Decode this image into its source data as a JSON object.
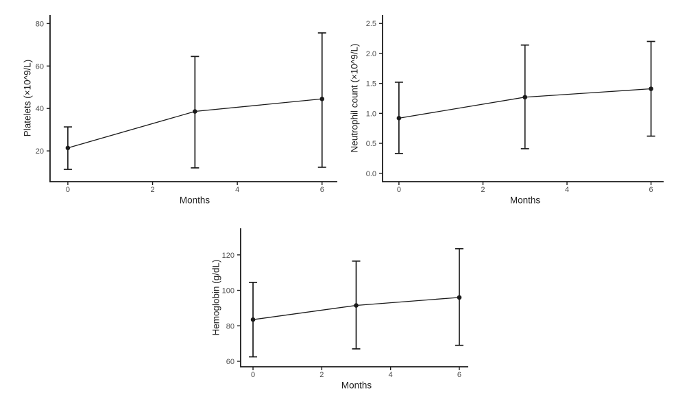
{
  "figure": {
    "background": "#ffffff",
    "description_labels": {
      "months_label": "Months"
    }
  },
  "colors": {
    "axis": "#1a1a1a",
    "line": "#1a1a1a",
    "point": "#1a1a1a",
    "errorbar": "#1a1a1a",
    "tick_label": "#4d4d4d",
    "axis_title": "#1f1f1f",
    "background": "#ffffff"
  },
  "chart_data": [
    {
      "id": "platelets",
      "type": "line",
      "title": "",
      "xlabel": "Months",
      "ylabel": "Platelets (×10^9/L)",
      "x": [
        0,
        3,
        6
      ],
      "series": [
        {
          "name": "mean",
          "values": [
            21.4,
            38.6,
            44.5
          ]
        }
      ],
      "error_low": [
        11.3,
        12.0,
        12.3
      ],
      "error_high": [
        31.3,
        64.5,
        75.6
      ],
      "xticks": [
        0,
        2,
        4,
        6
      ],
      "xtick_labels": [
        "0",
        "2",
        "4",
        "6"
      ],
      "yticks": [
        20,
        40,
        60,
        80
      ],
      "ytick_labels": [
        "20",
        "40",
        "60",
        "80"
      ],
      "xlim": [
        -0.42,
        6.36
      ],
      "ylim": [
        5.5,
        84.0
      ],
      "grid": false,
      "legend": "none"
    },
    {
      "id": "neutrophil",
      "type": "line",
      "title": "",
      "xlabel": "Months",
      "ylabel": "Neutrophil count (×10^9/L)",
      "x": [
        0,
        3,
        6
      ],
      "series": [
        {
          "name": "mean",
          "values": [
            0.92,
            1.27,
            1.41
          ]
        }
      ],
      "error_low": [
        0.33,
        0.41,
        0.62
      ],
      "error_high": [
        1.52,
        2.14,
        2.2
      ],
      "xticks": [
        0,
        2,
        4,
        6
      ],
      "xtick_labels": [
        "0",
        "2",
        "4",
        "6"
      ],
      "yticks": [
        0,
        0.5,
        1,
        1.5,
        2,
        2.5
      ],
      "ytick_labels": [
        "0.0",
        "0.5",
        "1.0",
        "1.5",
        "2.0",
        "2.5"
      ],
      "xlim": [
        -0.39,
        6.3
      ],
      "ylim": [
        -0.14,
        2.64
      ],
      "grid": false,
      "legend": "none"
    },
    {
      "id": "hemoglobin",
      "type": "line",
      "title": "",
      "xlabel": "Months",
      "ylabel": "Hemoglobin (g/dL)",
      "x": [
        0,
        3,
        6
      ],
      "series": [
        {
          "name": "mean",
          "values": [
            83.5,
            91.5,
            96.0
          ]
        }
      ],
      "error_low": [
        62.5,
        67.0,
        69.0
      ],
      "error_high": [
        104.5,
        116.5,
        123.5
      ],
      "xticks": [
        0,
        2,
        4,
        6
      ],
      "xtick_labels": [
        "0",
        "2",
        "4",
        "6"
      ],
      "yticks": [
        60,
        80,
        100,
        120
      ],
      "ytick_labels": [
        "60",
        "80",
        "100",
        "120"
      ],
      "xlim": [
        -0.36,
        6.26
      ],
      "ylim": [
        56.9,
        135.0
      ],
      "grid": false,
      "legend": "none"
    }
  ]
}
